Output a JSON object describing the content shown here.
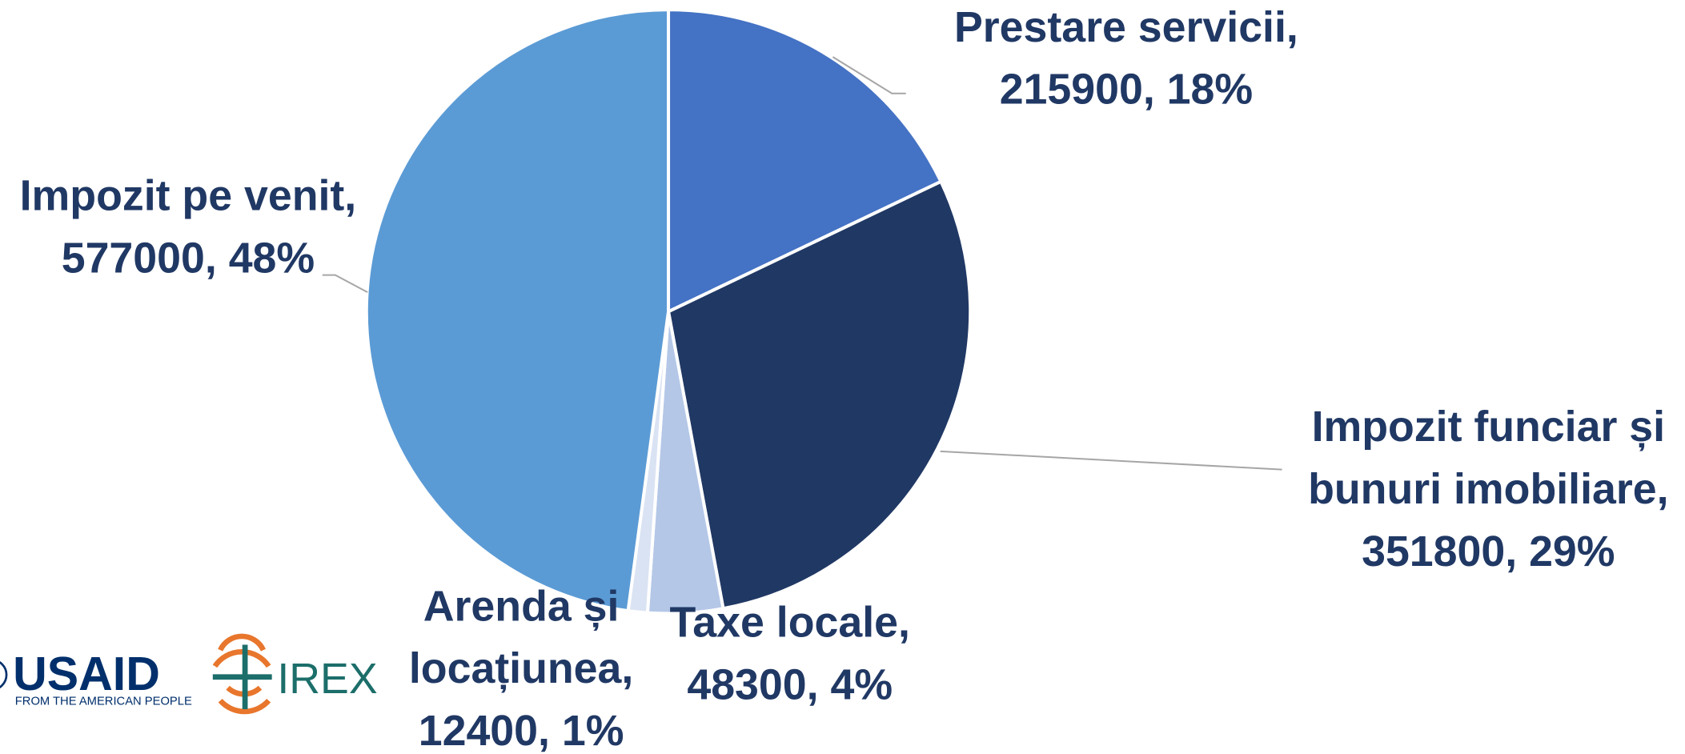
{
  "chart_data": {
    "type": "pie",
    "values": [
      215900,
      351800,
      48300,
      12400,
      577000
    ],
    "data_labels": [
      [
        "Prestare servicii,",
        "215900, 18%"
      ],
      [
        "Impozit funciar și",
        "bunuri imobiliare,",
        "351800, 29%"
      ],
      [
        "Taxe locale,",
        "48300, 4%"
      ],
      [
        "Arenda și",
        "locațiunea,",
        "12400, 1%"
      ],
      [
        "Impozit pe venit,",
        "577000, 48%"
      ]
    ],
    "colors": [
      "#4472c4",
      "#203864",
      "#b4c7e7",
      "#dae3f3",
      "#5b9bd5"
    ]
  },
  "logos": {
    "usaid": "USAID",
    "usaid_tagline": "FROM THE AMERICAN PEOPLE",
    "irex": "IREX"
  }
}
